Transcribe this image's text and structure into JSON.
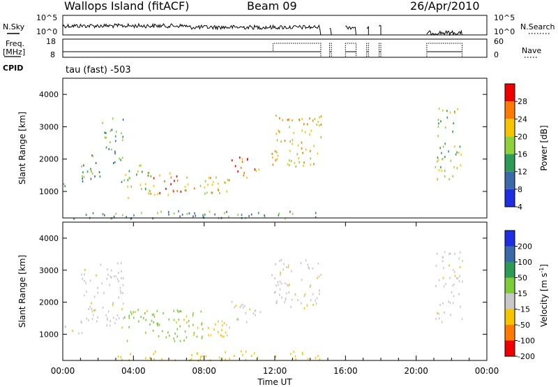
{
  "header": {
    "station": "Wallops Island (fitACF)",
    "beam": "Beam 09",
    "date": "26/Apr/2010",
    "cpid": "CPID",
    "cpid_value": "tau (fast) -503"
  },
  "chart_data": [
    {
      "type": "line",
      "name": "noise",
      "series": [
        {
          "name": "N.Sky"
        },
        {
          "name": "N.Search"
        }
      ],
      "left_label": "N.Sky",
      "right_label": "N.Search",
      "left_ticks": [
        "10^5",
        "10^0"
      ],
      "right_ticks": [
        "10^5",
        "10^0"
      ]
    },
    {
      "type": "line",
      "name": "frequency",
      "series": [
        {
          "name": "Freq. [MHz]"
        },
        {
          "name": "Nave"
        }
      ],
      "left_label_1": "Freq.",
      "left_label_2": "[MHz]",
      "right_label": "Nave",
      "left_ticks": [
        "18",
        "8"
      ],
      "right_ticks": [
        "60",
        "0"
      ]
    },
    {
      "type": "heatmap",
      "name": "power",
      "ylabel": "Slant Range [km]",
      "yticks": [
        "4000",
        "3000",
        "2000",
        "1000"
      ],
      "ylim": [
        180,
        4500
      ],
      "colorbar_label": "Power [dB]",
      "colorbar_ticks": [
        "28",
        "24",
        "20",
        "16",
        "12",
        "8",
        "4"
      ],
      "colorbar_colors": [
        "#ee0000",
        "#ff7a00",
        "#f5c500",
        "#8ed13c",
        "#2e9a55",
        "#3a6aa8",
        "#1f2ee0"
      ],
      "clusters": [
        {
          "t": [
            0.0,
            1.1
          ],
          "r": [
            1050,
            1300
          ],
          "level": 2
        },
        {
          "t": [
            1.0,
            2.2
          ],
          "r": [
            1300,
            2200
          ],
          "level": 2
        },
        {
          "t": [
            2.2,
            3.4
          ],
          "r": [
            1900,
            3300
          ],
          "level": 2
        },
        {
          "t": [
            3.3,
            5.0
          ],
          "r": [
            800,
            1900
          ],
          "level": 3
        },
        {
          "t": [
            4.8,
            7.0
          ],
          "r": [
            900,
            1600
          ],
          "level": 5
        },
        {
          "t": [
            6.8,
            9.4
          ],
          "r": [
            950,
            1500
          ],
          "level": 4
        },
        {
          "t": [
            9.5,
            11.2
          ],
          "r": [
            1400,
            2100
          ],
          "level": 5
        },
        {
          "t": [
            11.8,
            14.6
          ],
          "r": [
            1800,
            3400
          ],
          "level": 4
        },
        {
          "t": [
            21.0,
            22.6
          ],
          "r": [
            1400,
            3600
          ],
          "level": 3
        },
        {
          "t": [
            0.0,
            14.6
          ],
          "r": [
            180,
            420
          ],
          "level": 2
        }
      ]
    },
    {
      "type": "heatmap",
      "name": "velocity",
      "ylabel": "Slant Range [km]",
      "yticks": [
        "4000",
        "3000",
        "2000",
        "1000"
      ],
      "ylim": [
        180,
        4500
      ],
      "xlabel": "Time UT",
      "xticks": [
        "00:00",
        "04:00",
        "08:00",
        "12:00",
        "16:00",
        "20:00",
        "00:00"
      ],
      "xlim": [
        0,
        24
      ],
      "colorbar_label": "Velocity [m s",
      "colorbar_sup": "-1",
      "colorbar_ticks": [
        "200",
        "100",
        "50",
        "15",
        "-15",
        "-50",
        "-100",
        "-200"
      ],
      "colorbar_colors": [
        "#1f2ee0",
        "#3a6aa8",
        "#2e9a55",
        "#7ecb3c",
        "#c8c8c8",
        "#f5c500",
        "#ff7a00",
        "#ee0000"
      ],
      "clusters": [
        {
          "t": [
            0.0,
            1.1
          ],
          "r": [
            1050,
            1300
          ],
          "color": "#c8c8c8"
        },
        {
          "t": [
            1.0,
            3.4
          ],
          "r": [
            1300,
            3300
          ],
          "color": "#c8c8c8"
        },
        {
          "t": [
            3.3,
            8.0
          ],
          "r": [
            800,
            1800
          ],
          "color": "#7ecb3c"
        },
        {
          "t": [
            7.6,
            9.2
          ],
          "r": [
            950,
            1500
          ],
          "color": "#f5c500"
        },
        {
          "t": [
            8.9,
            9.4
          ],
          "r": [
            950,
            1500
          ],
          "color": "#c8c8c8"
        },
        {
          "t": [
            9.5,
            11.2
          ],
          "r": [
            1400,
            2100
          ],
          "color": "#c8c8c8"
        },
        {
          "t": [
            11.8,
            14.6
          ],
          "r": [
            1800,
            3400
          ],
          "color": "#c8c8c8"
        },
        {
          "t": [
            21.0,
            22.6
          ],
          "r": [
            1400,
            3600
          ],
          "color": "#c8c8c8"
        },
        {
          "t": [
            3.0,
            14.6
          ],
          "r": [
            180,
            500
          ],
          "color": "#f5c500"
        }
      ]
    }
  ]
}
